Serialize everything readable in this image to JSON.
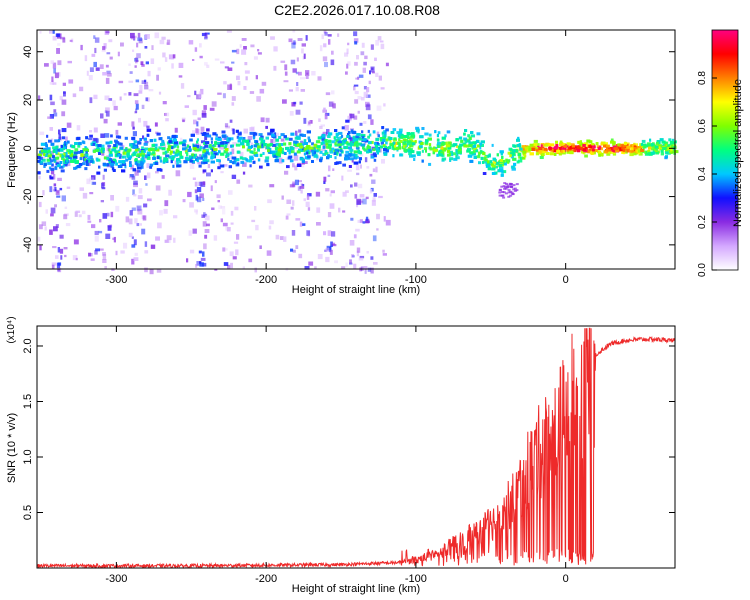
{
  "title": "C2E2.2026.017.10.08.R08",
  "chart_data": [
    {
      "type": "heatmap",
      "name": "spectrogram",
      "xlabel": "Height of straight line (km)",
      "ylabel": "Frequency (Hz)",
      "xlim": [
        -353,
        73
      ],
      "ylim": [
        -50,
        49
      ],
      "xticks": [
        -300,
        -200,
        -100,
        0
      ],
      "yticks": [
        -40,
        -20,
        0,
        20,
        40
      ],
      "tick_labels_x": [
        "-300",
        "-200",
        "-100",
        "0"
      ],
      "tick_labels_y": [
        "-40",
        "-20",
        "0",
        "20",
        "40"
      ],
      "colorbar": {
        "label": "Normalized spectral amplitude",
        "range": [
          0.0,
          1.0
        ],
        "ticks": [
          0.0,
          0.2,
          0.4,
          0.6,
          0.8
        ],
        "tick_labels": [
          "0.0",
          "0.2",
          "0.4",
          "0.6",
          "0.8"
        ],
        "colors": [
          "#ffffff",
          "#d4a8ff",
          "#8a2be2",
          "#1010ff",
          "#00c8ff",
          "#00ff80",
          "#80ff00",
          "#ffff00",
          "#ff8000",
          "#ff0000",
          "#ff0080"
        ]
      },
      "center_track": {
        "x": [
          -353,
          -300,
          -250,
          -200,
          -150,
          -120,
          -100,
          -80,
          -75,
          -70,
          -60,
          -50,
          -45,
          -40,
          -35,
          -30,
          -20,
          0,
          30,
          73
        ],
        "y": [
          -3,
          -2,
          -1,
          0,
          1,
          2,
          2,
          0,
          -1,
          3,
          0,
          -5,
          -7,
          -4,
          -2,
          -1,
          0,
          0,
          0,
          0
        ]
      }
    },
    {
      "type": "line",
      "name": "snr",
      "xlabel": "Height of straight line (km)",
      "ylabel": "SNR (10 * v/v)",
      "scale_label": "(x10⁴)",
      "xlim": [
        -353,
        73
      ],
      "ylim": [
        0,
        2.18
      ],
      "xticks": [
        -300,
        -200,
        -100,
        0
      ],
      "yticks": [
        0.5,
        1.0,
        1.5,
        2.0
      ],
      "tick_labels_x": [
        "-300",
        "-200",
        "-100",
        "0"
      ],
      "tick_labels_y": [
        "0.5",
        "1.0",
        "1.5",
        "2.0"
      ],
      "color": "#ee2a2a",
      "series": [
        {
          "name": "SNR",
          "x": [
            -353,
            -250,
            -150,
            -110,
            -100,
            -90,
            -80,
            -70,
            -60,
            -50,
            -40,
            -35,
            -30,
            -25,
            -20,
            -15,
            -10,
            -5,
            0,
            5,
            10,
            20,
            30,
            40,
            50,
            60,
            73
          ],
          "y": [
            0.02,
            0.02,
            0.03,
            0.05,
            0.08,
            0.12,
            0.18,
            0.25,
            0.32,
            0.42,
            0.55,
            0.65,
            0.8,
            0.95,
            1.05,
            1.15,
            1.25,
            1.35,
            1.45,
            1.6,
            1.75,
            1.92,
            2.02,
            2.05,
            2.06,
            2.06,
            2.05
          ]
        }
      ]
    }
  ]
}
